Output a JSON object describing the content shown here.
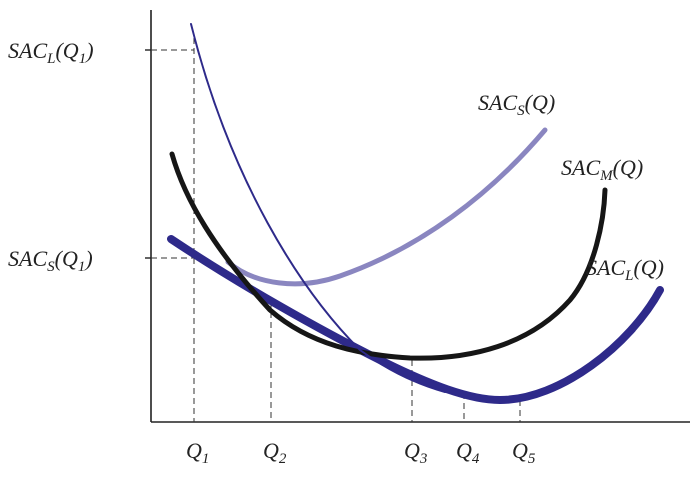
{
  "colors": {
    "axis": "#222222",
    "guide": "#333333",
    "sac_s": "#8a86c0",
    "sac_m": "#161616",
    "sac_l": "#2e2a8a"
  },
  "y_axis_labels": [
    {
      "base": "SAC",
      "sub": "L",
      "arg": "(Q",
      "argsub": "1",
      "close": ")"
    },
    {
      "base": "SAC",
      "sub": "S",
      "arg": "(Q",
      "argsub": "1",
      "close": ")"
    }
  ],
  "x_axis_labels": [
    {
      "base": "Q",
      "sub": "1"
    },
    {
      "base": "Q",
      "sub": "2"
    },
    {
      "base": "Q",
      "sub": "3"
    },
    {
      "base": "Q",
      "sub": "4"
    },
    {
      "base": "Q",
      "sub": "5"
    }
  ],
  "curve_labels": [
    {
      "base": "SAC",
      "sub": "S",
      "arg": "(Q)"
    },
    {
      "base": "SAC",
      "sub": "M",
      "arg": "(Q)"
    },
    {
      "base": "SAC",
      "sub": "L",
      "arg": "(Q)"
    }
  ]
}
